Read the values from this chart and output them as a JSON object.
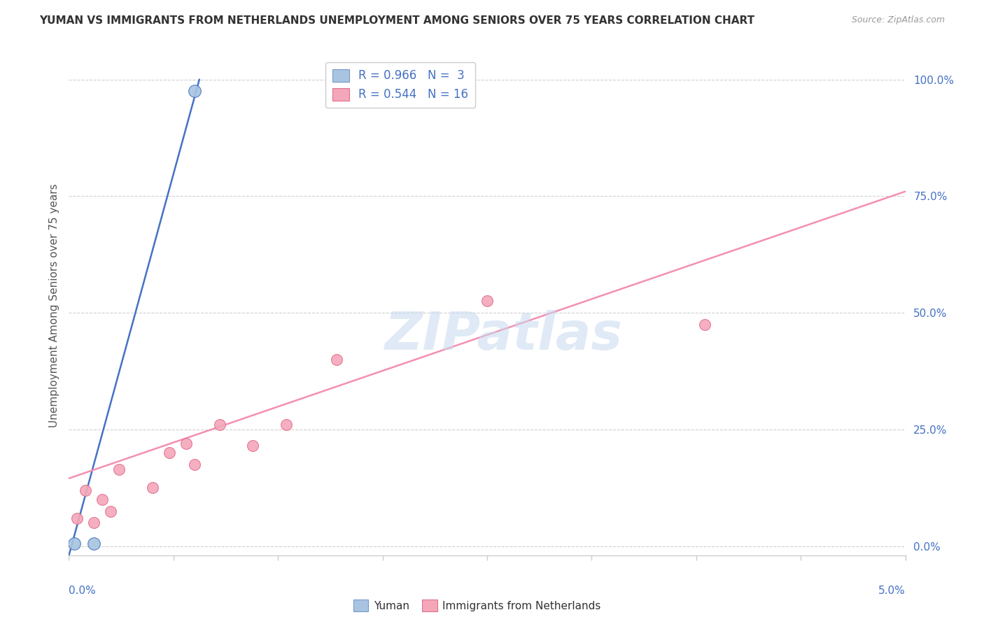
{
  "title": "YUMAN VS IMMIGRANTS FROM NETHERLANDS UNEMPLOYMENT AMONG SENIORS OVER 75 YEARS CORRELATION CHART",
  "source": "Source: ZipAtlas.com",
  "ylabel": "Unemployment Among Seniors over 75 years",
  "ylabel_right_ticks": [
    "100.0%",
    "75.0%",
    "50.0%",
    "25.0%",
    "0.0%"
  ],
  "ylabel_right_vals": [
    1.0,
    0.75,
    0.5,
    0.25,
    0.0
  ],
  "xmin": 0.0,
  "xmax": 0.05,
  "ymin": -0.02,
  "ymax": 1.05,
  "watermark": "ZIPatlas",
  "yuman_color": "#a8c4e0",
  "netherlands_color": "#f4a7b9",
  "line_blue": "#4472c4",
  "line_pink": "#f48fb1",
  "yuman_scatter_x": [
    0.0003,
    0.0015,
    0.0075
  ],
  "yuman_scatter_y": [
    0.005,
    0.005,
    0.975
  ],
  "netherlands_scatter_x": [
    0.0005,
    0.001,
    0.0015,
    0.002,
    0.0025,
    0.003,
    0.005,
    0.006,
    0.007,
    0.0075,
    0.009,
    0.011,
    0.013,
    0.016,
    0.025,
    0.038
  ],
  "netherlands_scatter_y": [
    0.06,
    0.12,
    0.05,
    0.1,
    0.075,
    0.165,
    0.125,
    0.2,
    0.22,
    0.175,
    0.26,
    0.215,
    0.26,
    0.4,
    0.525,
    0.475
  ],
  "blue_line_x": [
    0.0,
    0.0078
  ],
  "blue_line_y": [
    -0.02,
    1.0
  ],
  "pink_line_x": [
    0.0,
    0.05
  ],
  "pink_line_y": [
    0.145,
    0.76
  ],
  "grid_vals": [
    0.0,
    0.25,
    0.5,
    0.75,
    1.0
  ],
  "xtick_count": 9
}
